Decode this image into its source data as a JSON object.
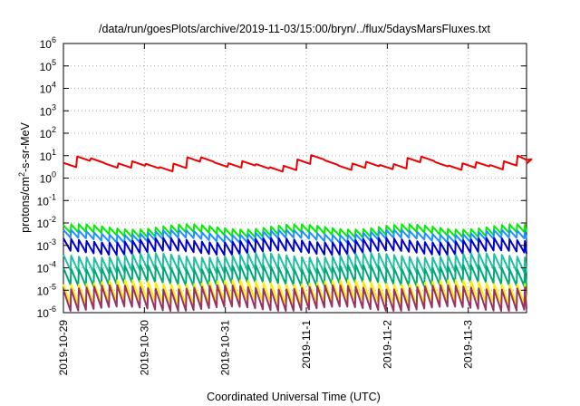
{
  "chart_data": {
    "type": "line",
    "title": "/data/run/goesPlots/archive/2019-11-03/15:00/bryn/../flux/5daysMarsFluxes.txt",
    "xlabel": "Coordinated Universal Time (UTC)",
    "ylabel": "protons/cm",
    "ylabel_sup": "2",
    "ylabel_rest": "-s-sr-MeV",
    "yscale": "log",
    "ylim": [
      1e-06,
      1000000.0
    ],
    "xlim": [
      0,
      5.72
    ],
    "grid": true,
    "y_ticks": [
      {
        "base": "10",
        "exp": "-6",
        "v": -6
      },
      {
        "base": "10",
        "exp": "-5",
        "v": -5
      },
      {
        "base": "10",
        "exp": "-4",
        "v": -4
      },
      {
        "base": "10",
        "exp": "-3",
        "v": -3
      },
      {
        "base": "10",
        "exp": "-2",
        "v": -2
      },
      {
        "base": "10",
        "exp": "-1",
        "v": -1
      },
      {
        "base": "10",
        "exp": "0",
        "v": 0
      },
      {
        "base": "10",
        "exp": "1",
        "v": 1
      },
      {
        "base": "10",
        "exp": "2",
        "v": 2
      },
      {
        "base": "10",
        "exp": "3",
        "v": 3
      },
      {
        "base": "10",
        "exp": "4",
        "v": 4
      },
      {
        "base": "10",
        "exp": "5",
        "v": 5
      },
      {
        "base": "10",
        "exp": "6",
        "v": 6
      }
    ],
    "x_ticks": [
      {
        "label": "2019-10-29",
        "v": 0
      },
      {
        "label": "2019-10-30",
        "v": 1
      },
      {
        "label": "2019-10-31",
        "v": 2
      },
      {
        "label": "2019-11-1",
        "v": 3
      },
      {
        "label": "2019-11-2",
        "v": 4
      },
      {
        "label": "2019-11-3",
        "v": 5
      }
    ],
    "series": [
      {
        "color": "#ee0000",
        "base": 0.25,
        "jump": 0.35,
        "period": 0.17,
        "slow": 0.45,
        "days": [
          0.2,
          0.9,
          1.6,
          2.25,
          3.05,
          3.7,
          4.35,
          5.05,
          5.6
        ]
      },
      {
        "color": "#00ee00",
        "base": -2.35,
        "jump": 0.35,
        "period": 0.095,
        "slow": 0.12
      },
      {
        "color": "#1e90ff",
        "base": -2.6,
        "jump": 0.35,
        "period": 0.095,
        "slow": 0.12
      },
      {
        "color": "#0000cc",
        "base": -3.05,
        "jump": 0.55,
        "period": 0.095,
        "slow": 0.1
      },
      {
        "color": "#20c0a0",
        "base": -3.8,
        "jump": 0.7,
        "period": 0.095,
        "slow": 0.1
      },
      {
        "color": "#00a878",
        "base": -4.35,
        "jump": 0.75,
        "period": 0.095,
        "slow": 0.1
      },
      {
        "color": "#ffee00",
        "base": -5.1,
        "jump": 0.9,
        "period": 0.095,
        "slow": 0.1
      },
      {
        "color": "#993366",
        "base": -5.35,
        "jump": 0.95,
        "period": 0.095,
        "slow": 0.1
      }
    ]
  }
}
